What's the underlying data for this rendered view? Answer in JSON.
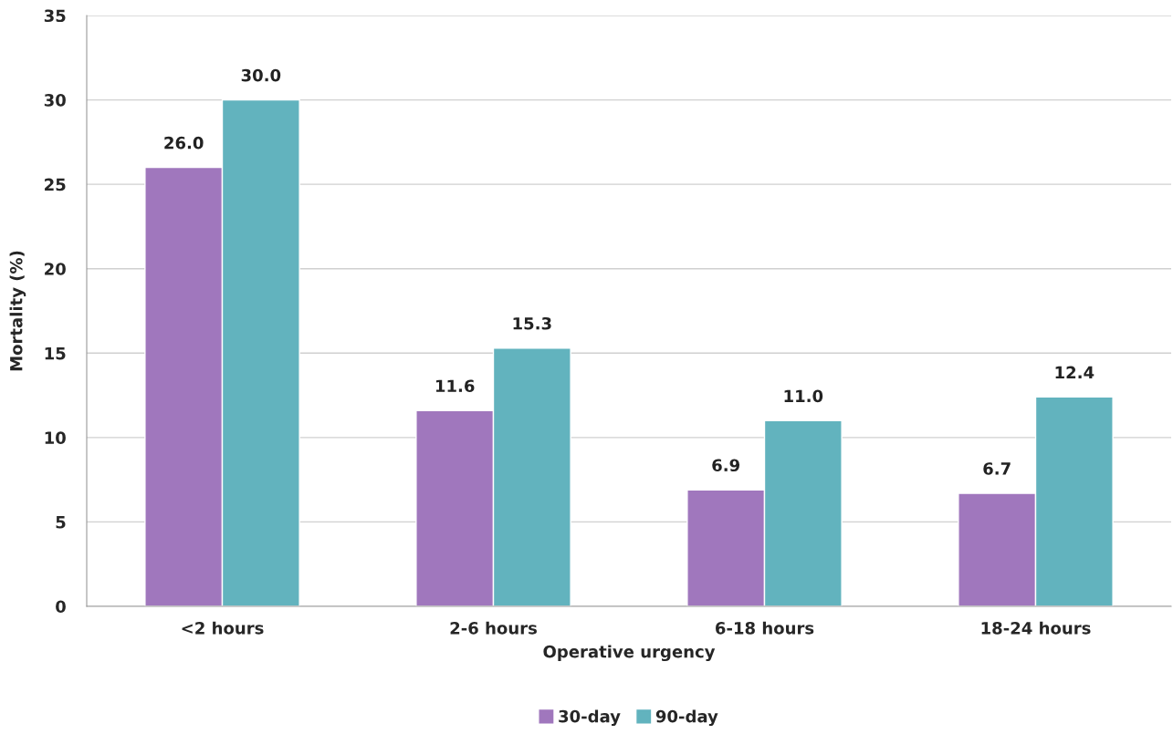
{
  "chart_data": {
    "type": "bar",
    "xlabel": "Operative urgency",
    "ylabel": "Mortality (%)",
    "categories": [
      "<2 hours",
      "2-6 hours",
      "6-18 hours",
      "18-24 hours"
    ],
    "series": [
      {
        "name": "30-day",
        "color": "#a077bd",
        "values": [
          26.0,
          11.6,
          6.9,
          6.7
        ],
        "value_labels": [
          "26.0",
          "11.6",
          "6.9",
          "6.7"
        ]
      },
      {
        "name": "90-day",
        "color": "#62b3be",
        "values": [
          30.0,
          15.3,
          11.0,
          12.4
        ],
        "value_labels": [
          "30.0",
          "15.3",
          "11.0",
          "12.4"
        ]
      }
    ],
    "ylim": [
      0,
      35
    ],
    "yticks": [
      0,
      5,
      10,
      15,
      20,
      25,
      30,
      35
    ],
    "grid": "y",
    "legend": "bottom"
  }
}
